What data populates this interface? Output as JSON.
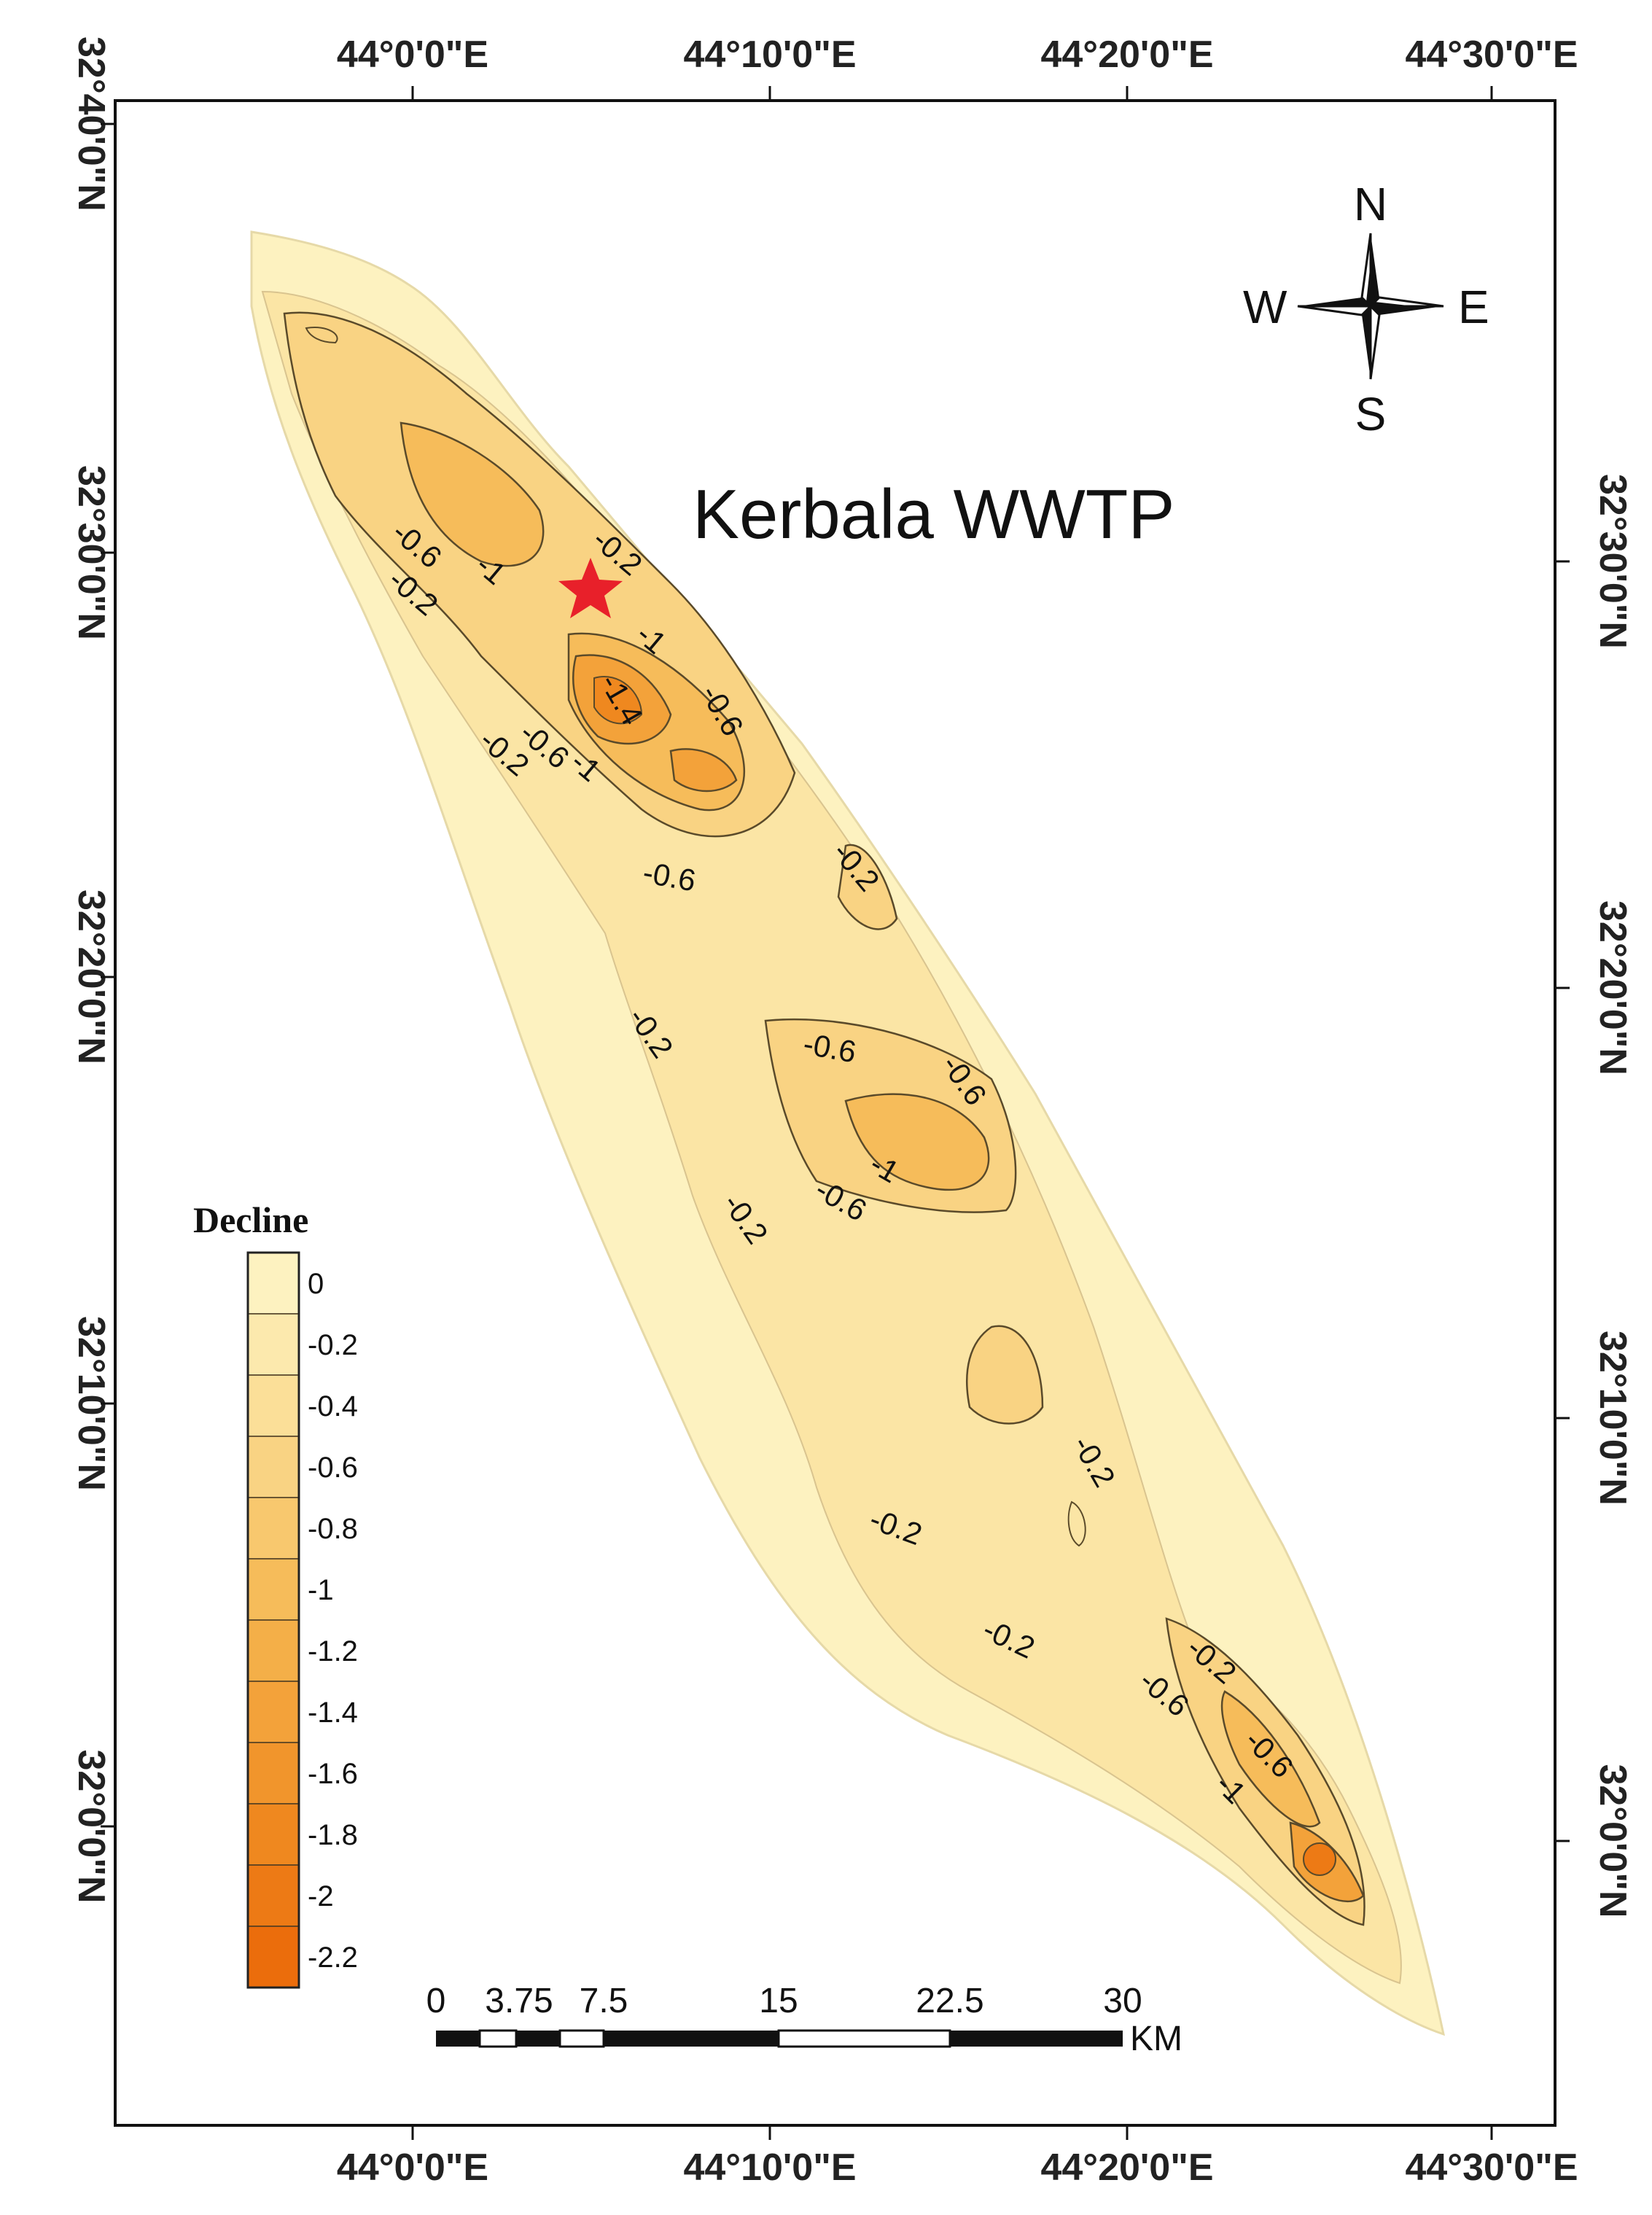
{
  "title": "Kerbala WWTP",
  "coordinates": {
    "top_longitudes": [
      "44°0'0\"E",
      "44°10'0\"E",
      "44°20'0\"E",
      "44°30'0\"E"
    ],
    "bottom_longitudes": [
      "44°0'0\"E",
      "44°10'0\"E",
      "44°20'0\"E",
      "44°30'0\"E"
    ],
    "left_latitudes": [
      "32°40'0\"N",
      "32°30'0\"N",
      "32°20'0\"N",
      "32°10'0\"N",
      "32°0'0\"N"
    ],
    "right_latitudes": [
      "32°30'0\"N",
      "32°20'0\"N",
      "32°10'0\"N",
      "32°0'0\"N"
    ]
  },
  "compass": {
    "north": "N",
    "south": "S",
    "east": "E",
    "west": "W"
  },
  "legend": {
    "title": "Decline",
    "labels": [
      "0",
      "-0.2",
      "-0.4",
      "-0.6",
      "-0.8",
      "-1",
      "-1.2",
      "-1.4",
      "-1.6",
      "-1.8",
      "-2",
      "-2.2"
    ],
    "colors": [
      "#fdf2c0",
      "#fce9ad",
      "#fbdf98",
      "#f9d383",
      "#f8c86e",
      "#f6bc5a",
      "#f4af48",
      "#f3a23a",
      "#f1952c",
      "#ef881f",
      "#ed7a15",
      "#eb6d0c"
    ]
  },
  "contour_labels": [
    "-0.6",
    "-1",
    "-0.2",
    "-0.2",
    "-0.2",
    "-1",
    "-1.4",
    "-0.6",
    "-0.6",
    "-1",
    "-0.2",
    "-0.6",
    "-0.2",
    "-0.6",
    "-0.6",
    "-1",
    "-0.6",
    "-0.2",
    "-0.2",
    "-0.2",
    "-0.2",
    "-0.2",
    "-0.6",
    "-0.6",
    "-1"
  ],
  "scale_bar": {
    "labels": [
      "0",
      "3.75",
      "7.5",
      "15",
      "22.5",
      "30"
    ],
    "unit": "KM"
  },
  "site_marker": "red-star"
}
